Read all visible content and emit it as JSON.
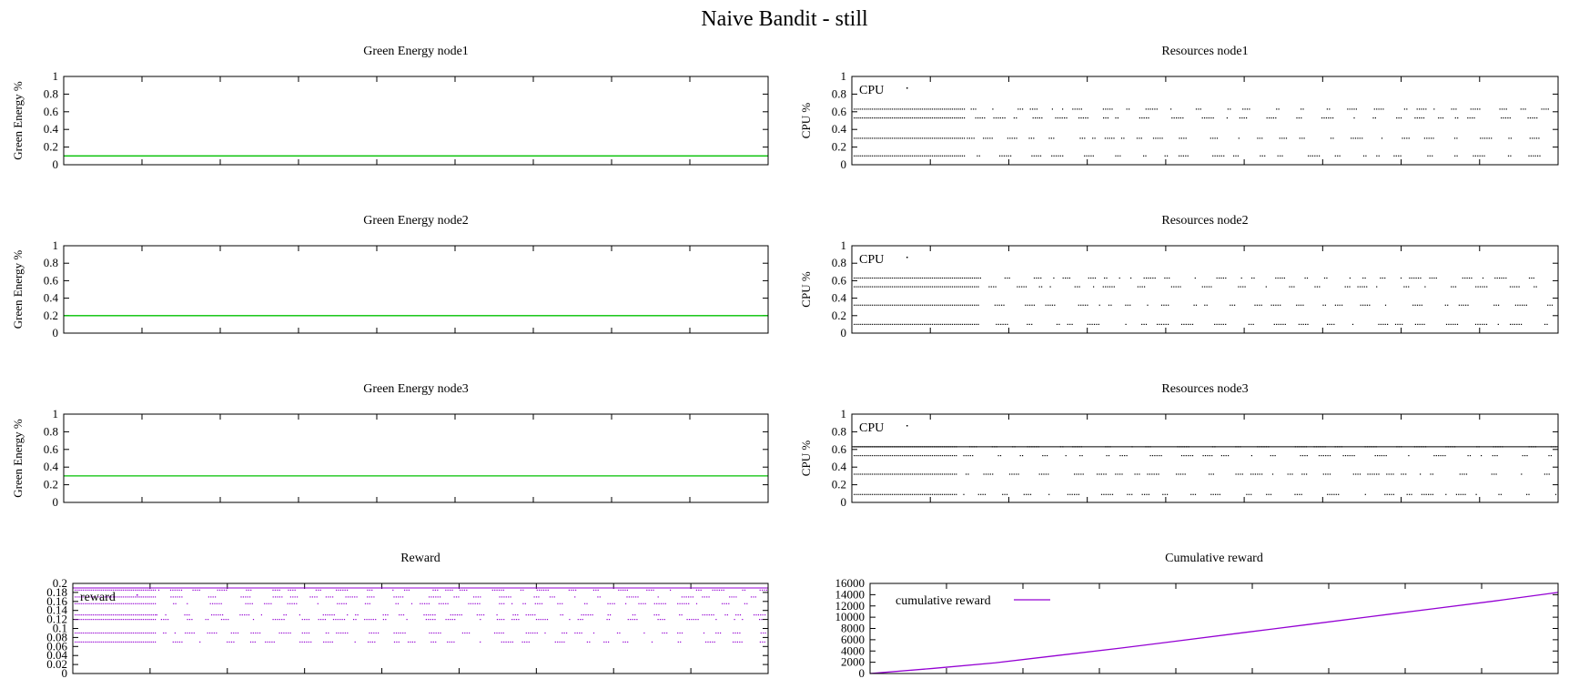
{
  "figure_title": "Naive Bandit - still",
  "chart_data": [
    {
      "id": "ge1",
      "type": "line",
      "title": "Green Energy node1",
      "ylabel": "Green Energy %",
      "ylim": [
        0,
        1
      ],
      "yticks": [
        "0",
        "0.2",
        "0.4",
        "0.6",
        "0.8",
        "1"
      ],
      "ytick_values": [
        0,
        0.2,
        0.4,
        0.6,
        0.8,
        1
      ],
      "x_tick_count": 9,
      "grid": false,
      "line_color": "#00c000",
      "series": [
        {
          "values": [
            0.1,
            0.1
          ]
        }
      ]
    },
    {
      "id": "ge2",
      "type": "line",
      "title": "Green Energy node2",
      "ylabel": "Green Energy %",
      "ylim": [
        0,
        1
      ],
      "yticks": [
        "0",
        "0.2",
        "0.4",
        "0.6",
        "0.8",
        "1"
      ],
      "ytick_values": [
        0,
        0.2,
        0.4,
        0.6,
        0.8,
        1
      ],
      "x_tick_count": 9,
      "grid": false,
      "line_color": "#00c000",
      "series": [
        {
          "values": [
            0.2,
            0.2
          ]
        }
      ]
    },
    {
      "id": "ge3",
      "type": "line",
      "title": "Green Energy node3",
      "ylabel": "Green Energy %",
      "ylim": [
        0,
        1
      ],
      "yticks": [
        "0",
        "0.2",
        "0.4",
        "0.6",
        "0.8",
        "1"
      ],
      "ytick_values": [
        0,
        0.2,
        0.4,
        0.6,
        0.8,
        1
      ],
      "x_tick_count": 9,
      "grid": false,
      "line_color": "#00c000",
      "series": [
        {
          "values": [
            0.3,
            0.3
          ]
        }
      ]
    },
    {
      "id": "res1",
      "type": "scatter",
      "title": "Resources node1",
      "ylabel": "CPU %",
      "ylim": [
        0,
        1
      ],
      "yticks": [
        "0",
        "0.2",
        "0.4",
        "0.6",
        "0.8",
        "1"
      ],
      "ytick_values": [
        0,
        0.2,
        0.4,
        0.6,
        0.8,
        1
      ],
      "x_tick_count": 9,
      "grid": false,
      "legend_position": "top-left",
      "series": [
        {
          "name": "CPU",
          "color": "#000000",
          "levels": [
            0.1,
            0.3,
            0.53,
            0.63
          ],
          "dense_region_end": 0.16
        }
      ]
    },
    {
      "id": "res2",
      "type": "scatter",
      "title": "Resources node2",
      "ylabel": "CPU %",
      "ylim": [
        0,
        1
      ],
      "yticks": [
        "0",
        "0.2",
        "0.4",
        "0.6",
        "0.8",
        "1"
      ],
      "ytick_values": [
        0,
        0.2,
        0.4,
        0.6,
        0.8,
        1
      ],
      "x_tick_count": 9,
      "grid": false,
      "legend_position": "top-left",
      "series": [
        {
          "name": "CPU",
          "color": "#000000",
          "levels": [
            0.1,
            0.32,
            0.53,
            0.63
          ],
          "dense_region_end": 0.18
        }
      ]
    },
    {
      "id": "res3",
      "type": "scatter",
      "title": "Resources node3",
      "ylabel": "CPU %",
      "ylim": [
        0,
        1
      ],
      "yticks": [
        "0",
        "0.2",
        "0.4",
        "0.6",
        "0.8",
        "1"
      ],
      "ytick_values": [
        0,
        0.2,
        0.4,
        0.6,
        0.8,
        1
      ],
      "x_tick_count": 9,
      "grid": false,
      "legend_position": "top-left",
      "reference_line": 0.63,
      "series": [
        {
          "name": "CPU",
          "color": "#000000",
          "levels": [
            0.09,
            0.32,
            0.53,
            0.63
          ],
          "dense_region_end": 0.15
        }
      ]
    },
    {
      "id": "reward",
      "type": "scatter",
      "title": "Reward",
      "ylabel": "",
      "ylim": [
        0,
        0.2
      ],
      "yticks": [
        "0",
        "0.02",
        "0.04",
        "0.06",
        "0.08",
        "0.1",
        "0.12",
        "0.14",
        "0.16",
        "0.18",
        "0.2"
      ],
      "ytick_values": [
        0,
        0.02,
        0.04,
        0.06,
        0.08,
        0.1,
        0.12,
        0.14,
        0.16,
        0.18,
        0.2
      ],
      "x_tick_count": 9,
      "grid": false,
      "legend_position": "top-left",
      "reference_line": 0.19,
      "series": [
        {
          "name": "reward",
          "color": "#9400d3",
          "levels": [
            0.07,
            0.09,
            0.12,
            0.13,
            0.155,
            0.17,
            0.185
          ],
          "dense_region_end": 0.12
        }
      ]
    },
    {
      "id": "cum",
      "type": "line",
      "title": "Cumulative reward",
      "ylabel": "",
      "ylim": [
        0,
        16000
      ],
      "yticks": [
        "0",
        "2000",
        "4000",
        "6000",
        "8000",
        "10000",
        "12000",
        "14000",
        "16000"
      ],
      "ytick_values": [
        0,
        2000,
        4000,
        6000,
        8000,
        10000,
        12000,
        14000,
        16000
      ],
      "x_tick_count": 9,
      "grid": false,
      "legend_position": "top-left",
      "line_color": "#9400d3",
      "series": [
        {
          "name": "cumulative reward",
          "values": [
            0,
            900,
            1900,
            3200,
            4500,
            5900,
            7300,
            8700,
            10100,
            11500,
            12900,
            14400
          ]
        }
      ]
    }
  ]
}
